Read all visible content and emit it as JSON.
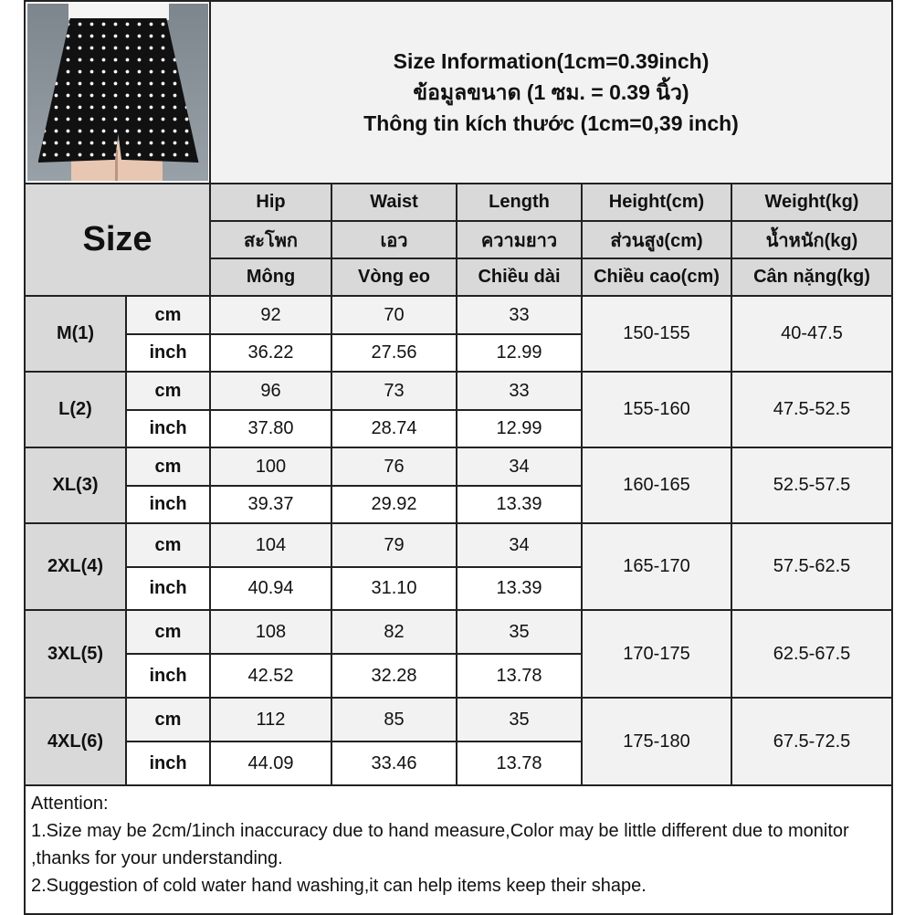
{
  "title": {
    "line1": "Size Information(1cm=0.39inch)",
    "line2": "ข้อมูลขนาด (1 ซม. = 0.39 นิ้ว)",
    "line3": "Thông tin kích thước (1cm=0,39 inch)"
  },
  "header": {
    "size_label": "Size",
    "columns": [
      {
        "en": "Hip",
        "th": "สะโพก",
        "vi": "Mông"
      },
      {
        "en": "Waist",
        "th": "เอว",
        "vi": "Vòng eo"
      },
      {
        "en": "Length",
        "th": "ความยาว",
        "vi": "Chiều dài"
      },
      {
        "en": "Height(cm)",
        "th": "ส่วนสูง(cm)",
        "vi": "Chiều cao(cm)"
      },
      {
        "en": "Weight(kg)",
        "th": "น้ำหนัก(kg)",
        "vi": "Cân nặng(kg)"
      }
    ]
  },
  "units": {
    "cm": "cm",
    "inch": "inch"
  },
  "rows": [
    {
      "size": "M(1)",
      "cm": [
        "92",
        "70",
        "33"
      ],
      "inch": [
        "36.22",
        "27.56",
        "12.99"
      ],
      "height": "150-155",
      "weight": "40-47.5"
    },
    {
      "size": "L(2)",
      "cm": [
        "96",
        "73",
        "33"
      ],
      "inch": [
        "37.80",
        "28.74",
        "12.99"
      ],
      "height": "155-160",
      "weight": "47.5-52.5"
    },
    {
      "size": "XL(3)",
      "cm": [
        "100",
        "76",
        "34"
      ],
      "inch": [
        "39.37",
        "29.92",
        "13.39"
      ],
      "height": "160-165",
      "weight": "52.5-57.5"
    },
    {
      "size": "2XL(4)",
      "cm": [
        "104",
        "79",
        "34"
      ],
      "inch": [
        "40.94",
        "31.10",
        "13.39"
      ],
      "height": "165-170",
      "weight": "57.5-62.5"
    },
    {
      "size": "3XL(5)",
      "cm": [
        "108",
        "82",
        "35"
      ],
      "inch": [
        "42.52",
        "32.28",
        "13.78"
      ],
      "height": "170-175",
      "weight": "62.5-67.5"
    },
    {
      "size": "4XL(6)",
      "cm": [
        "112",
        "85",
        "35"
      ],
      "inch": [
        "44.09",
        "33.46",
        "13.78"
      ],
      "height": "175-180",
      "weight": "67.5-72.5"
    }
  ],
  "attention": {
    "heading": "Attention:",
    "note1": "1.Size may be 2cm/1inch inaccuracy due to hand measure,Color may be little different due to monitor ,thanks for your understanding.",
    "note2": "2.Suggestion of cold water hand washing,it can help items keep their shape."
  },
  "colors": {
    "header_bg": "#d9d9d9",
    "light_bg": "#f2f2f2",
    "border": "#222222"
  }
}
